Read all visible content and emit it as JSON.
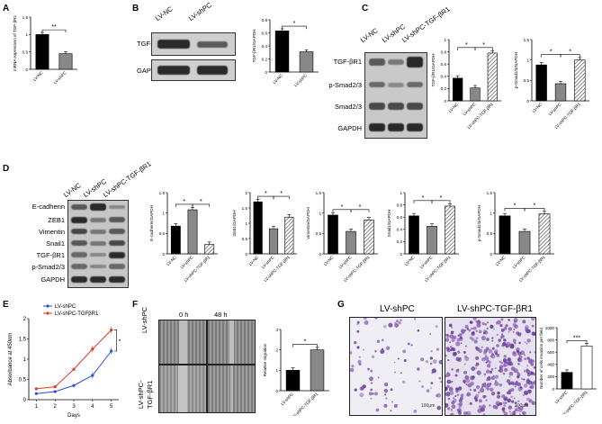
{
  "panels": {
    "A": "A",
    "B": "B",
    "C": "C",
    "D": "D",
    "E": "E",
    "F": "F",
    "G": "G"
  },
  "groups": {
    "nc": "LV-NC",
    "shpc": "LV-shPC",
    "shpc_tgf": "LV-shPC-TGF-βR1",
    "shpc_tgf_e": "LV-shPC-TGFβR1",
    "shpc_tgf_f1": "LV-shPC-",
    "shpc_tgf_f2": "TGF-βR1"
  },
  "blots": {
    "B_rows": [
      "TGF-βR1",
      "GAPDH"
    ],
    "C_rows": [
      "TGF-βR1",
      "p-Smad2/3",
      "Smad2/3",
      "GAPDH"
    ],
    "D_rows": [
      "E-cadherin",
      "ZEB1",
      "Vimentin",
      "Snail1",
      "TGF-βR1",
      "p-Smad2/3",
      "GAPDH"
    ]
  },
  "time_labels": {
    "t0": "0 h",
    "t48": "48 h"
  },
  "scale_text": "100μm",
  "chart_data": [
    {
      "panel": "A",
      "type": "bar",
      "categories": [
        "LV-NC",
        "LV-shPC"
      ],
      "values": [
        1.0,
        0.45
      ],
      "ylabel": "mRNA expression of TGF-βR1",
      "ylim": [
        0,
        1.5
      ],
      "yticks": [
        0.0,
        0.5,
        1.0,
        1.5
      ],
      "sig": "**",
      "colors": [
        "#000000",
        "#888888"
      ]
    },
    {
      "panel": "B",
      "type": "bar",
      "categories": [
        "LV-NC",
        "LV-shPC"
      ],
      "values": [
        0.63,
        0.31
      ],
      "ylabel": "TGF-βR1/GAPDH",
      "ylim": [
        0,
        0.8
      ],
      "yticks": [
        0.0,
        0.2,
        0.4,
        0.6,
        0.8
      ],
      "sig": "*",
      "colors": [
        "#000000",
        "#888888"
      ]
    },
    {
      "panel": "C1",
      "type": "bar",
      "categories": [
        "LV-NC",
        "LV-shPC",
        "LV-shPC-TGF-βR1"
      ],
      "values": [
        0.37,
        0.21,
        0.78
      ],
      "ylabel": "TGF-βR1/GAPDH",
      "ylim": [
        0,
        1.0
      ],
      "yticks": [
        0.0,
        0.2,
        0.4,
        0.6,
        0.8,
        1.0
      ],
      "sig": [
        "*",
        "*"
      ],
      "colors": [
        "#000000",
        "#888888",
        "hatch"
      ]
    },
    {
      "panel": "C2",
      "type": "bar",
      "categories": [
        "LV-NC",
        "LV-shPC",
        "LV-shPC-TGF-βR1"
      ],
      "values": [
        0.88,
        0.42,
        1.0
      ],
      "ylabel": "p-Smad2/3/GAPDH",
      "ylim": [
        0,
        1.5
      ],
      "yticks": [
        0.0,
        0.5,
        1.0,
        1.5
      ],
      "sig": [
        "*",
        "*"
      ],
      "colors": [
        "#000000",
        "#888888",
        "hatch"
      ]
    },
    {
      "panel": "D1",
      "type": "bar",
      "categories": [
        "LV-NC",
        "LV-shPC",
        "LV-shPC-TGF-βR1"
      ],
      "values": [
        0.68,
        1.08,
        0.23
      ],
      "ylabel": "E-cadherin/GAPDH",
      "ylim": [
        0,
        1.5
      ],
      "yticks": [
        0.0,
        0.5,
        1.0,
        1.5
      ],
      "sig": [
        "*",
        "*"
      ],
      "colors": [
        "#000000",
        "#888888",
        "hatch"
      ]
    },
    {
      "panel": "D2",
      "type": "bar",
      "categories": [
        "LV-NC",
        "LV-shPC",
        "LV-shPC-TGF-βR1"
      ],
      "values": [
        1.7,
        0.82,
        1.2
      ],
      "ylabel": "ZEB1/GAPDH",
      "ylim": [
        0,
        2.0
      ],
      "yticks": [
        0.0,
        0.5,
        1.0,
        1.5,
        2.0
      ],
      "sig": [
        "*",
        "*"
      ],
      "colors": [
        "#000000",
        "#888888",
        "hatch"
      ]
    },
    {
      "panel": "D3",
      "type": "bar",
      "categories": [
        "LV-NC",
        "LV-shPC",
        "LV-shPC-TGF-βR1"
      ],
      "values": [
        0.95,
        0.55,
        0.83
      ],
      "ylabel": "Vimentin/GAPDH",
      "ylim": [
        0,
        1.5
      ],
      "yticks": [
        0.0,
        0.5,
        1.0,
        1.5
      ],
      "sig": [
        "*",
        "*"
      ],
      "colors": [
        "#000000",
        "#888888",
        "hatch"
      ]
    },
    {
      "panel": "D4",
      "type": "bar",
      "categories": [
        "LV-NC",
        "LV-shPC",
        "LV-shPC-TGF-βR1"
      ],
      "values": [
        0.62,
        0.45,
        0.78
      ],
      "ylabel": "Snail1/GAPDH",
      "ylim": [
        0,
        1.0
      ],
      "yticks": [
        0.0,
        0.2,
        0.4,
        0.6,
        0.8,
        1.0
      ],
      "sig": [
        "*",
        "*"
      ],
      "colors": [
        "#000000",
        "#888888",
        "hatch"
      ]
    },
    {
      "panel": "D5",
      "type": "bar",
      "categories": [
        "LV-NC",
        "LV-shPC",
        "LV-shPC-TGF-βR1"
      ],
      "values": [
        0.93,
        0.55,
        0.98
      ],
      "ylabel": "p-Smad2/3/GAPDH",
      "ylim": [
        0,
        1.5
      ],
      "yticks": [
        0.0,
        0.5,
        1.0,
        1.5
      ],
      "sig": [
        "*",
        "*"
      ],
      "colors": [
        "#000000",
        "#888888",
        "hatch"
      ]
    },
    {
      "panel": "E",
      "type": "line",
      "x": [
        1,
        2,
        3,
        4,
        5
      ],
      "xlabel": "Days",
      "ylabel": "Absorbance at 450nm",
      "ylim": [
        0,
        2.0
      ],
      "yticks": [
        0.0,
        0.5,
        1.0,
        1.5,
        2.0
      ],
      "legend_placement": "top-left",
      "sig": "*",
      "series": [
        {
          "name": "LV-shPC",
          "values": [
            0.15,
            0.2,
            0.35,
            0.6,
            1.2
          ],
          "color": "#2b4fe0"
        },
        {
          "name": "LV-shPC-TGFβR1",
          "values": [
            0.27,
            0.32,
            0.75,
            1.25,
            1.72
          ],
          "color": "#e03a2b"
        }
      ]
    },
    {
      "panel": "F",
      "type": "bar",
      "categories": [
        "LV-shPC",
        "LV-shPC-TGF-βR1"
      ],
      "values": [
        1.0,
        2.0
      ],
      "ylabel": "Relative migration",
      "ylim": [
        0,
        3
      ],
      "yticks": [
        0,
        1,
        2,
        3
      ],
      "sig": "*",
      "colors": [
        "#000000",
        "#888888"
      ]
    },
    {
      "panel": "G",
      "type": "bar",
      "categories": [
        "LV-shPC",
        "LV-shPC-TGF-βR1"
      ],
      "values": [
        270,
        700
      ],
      "ylabel": "Number of cells invasion per field",
      "ylim": [
        0,
        1000
      ],
      "yticks": [
        0,
        200,
        400,
        600,
        800,
        1000
      ],
      "sig": "***",
      "colors": [
        "#000000",
        "#ffffff"
      ]
    }
  ]
}
